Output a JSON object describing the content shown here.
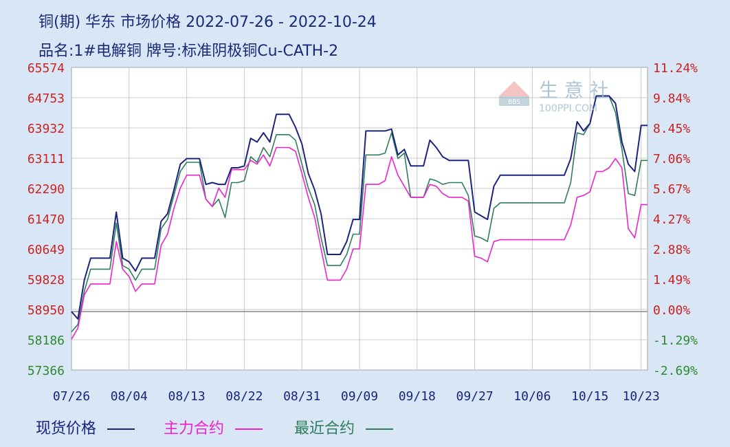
{
  "header": {
    "title": "铜(期) 华东 市场价格 2022-07-26 - 2022-10-24",
    "subtitle": "品名:1#电解铜 牌号:标准阴极铜Cu-CATH-2"
  },
  "watermark": {
    "name": "生 意 社",
    "site": "100PPI.COM"
  },
  "colors": {
    "spot": "#1a237e",
    "main": "#ee22cc",
    "recent": "#2e7d5a",
    "left_axis_upper": "#cc2222",
    "left_axis_lower": "#2e8b2e",
    "right_axis_upper": "#cc2222",
    "right_axis_lower": "#2e8b2e",
    "grid": "#c8c8c8",
    "baseline": "#888888"
  },
  "chart_data": {
    "type": "line",
    "x_ticks": [
      "07/26",
      "08/04",
      "08/13",
      "08/22",
      "08/31",
      "09/09",
      "09/18",
      "09/27",
      "10/06",
      "10/15",
      "10/23"
    ],
    "y_left_ticks": [
      "65574",
      "64753",
      "63932",
      "63111",
      "62290",
      "61470",
      "60649",
      "59828",
      "58950",
      "58186",
      "57366"
    ],
    "y_right_ticks": [
      "11.24%",
      "9.84%",
      "8.45%",
      "7.06%",
      "5.67%",
      "4.27%",
      "2.88%",
      "1.49%",
      "0.00%",
      "-1.29%",
      "-2.69%"
    ],
    "ylim": [
      57366,
      65574
    ],
    "baseline": 58950,
    "x_start": "07/26",
    "x_end": "10/24",
    "grid": true,
    "legend": [
      {
        "name": "现货价格",
        "key": "spot"
      },
      {
        "name": "主力合约",
        "key": "main"
      },
      {
        "name": "最近合约",
        "key": "recent"
      }
    ],
    "series": [
      {
        "name": "现货价格",
        "key": "spot",
        "points": [
          [
            "07/26",
            58950
          ],
          [
            "07/27",
            58750
          ],
          [
            "07/28",
            59800
          ],
          [
            "07/29",
            60400
          ],
          [
            "07/30",
            60400
          ],
          [
            "07/31",
            60400
          ],
          [
            "08/01",
            60400
          ],
          [
            "08/02",
            61650
          ],
          [
            "08/03",
            60400
          ],
          [
            "08/04",
            60300
          ],
          [
            "08/05",
            60050
          ],
          [
            "08/06",
            60400
          ],
          [
            "08/07",
            60400
          ],
          [
            "08/08",
            60400
          ],
          [
            "08/09",
            61400
          ],
          [
            "08/10",
            61600
          ],
          [
            "08/11",
            62250
          ],
          [
            "08/12",
            62950
          ],
          [
            "08/13",
            63100
          ],
          [
            "08/14",
            63100
          ],
          [
            "08/15",
            63100
          ],
          [
            "08/16",
            62400
          ],
          [
            "08/17",
            62450
          ],
          [
            "08/18",
            62400
          ],
          [
            "08/19",
            62400
          ],
          [
            "08/20",
            62850
          ],
          [
            "08/21",
            62850
          ],
          [
            "08/22",
            62900
          ],
          [
            "08/23",
            63650
          ],
          [
            "08/24",
            63550
          ],
          [
            "08/25",
            63800
          ],
          [
            "08/26",
            63550
          ],
          [
            "08/27",
            64300
          ],
          [
            "08/28",
            64300
          ],
          [
            "08/29",
            64300
          ],
          [
            "08/30",
            63950
          ],
          [
            "08/31",
            63500
          ],
          [
            "09/01",
            62700
          ],
          [
            "09/02",
            62250
          ],
          [
            "09/03",
            61600
          ],
          [
            "09/04",
            60500
          ],
          [
            "09/05",
            60500
          ],
          [
            "09/06",
            60500
          ],
          [
            "09/07",
            60850
          ],
          [
            "09/08",
            61450
          ],
          [
            "09/09",
            61450
          ],
          [
            "09/10",
            63850
          ],
          [
            "09/11",
            63850
          ],
          [
            "09/12",
            63850
          ],
          [
            "09/13",
            63850
          ],
          [
            "09/14",
            63900
          ],
          [
            "09/15",
            63200
          ],
          [
            "09/16",
            63350
          ],
          [
            "09/17",
            62900
          ],
          [
            "09/18",
            62900
          ],
          [
            "09/19",
            62900
          ],
          [
            "09/20",
            63600
          ],
          [
            "09/21",
            63400
          ],
          [
            "09/22",
            63150
          ],
          [
            "09/23",
            63050
          ],
          [
            "09/24",
            63050
          ],
          [
            "09/25",
            63050
          ],
          [
            "09/26",
            63050
          ],
          [
            "09/27",
            61650
          ],
          [
            "09/28",
            61550
          ],
          [
            "09/29",
            61450
          ],
          [
            "09/30",
            62350
          ],
          [
            "10/01",
            62650
          ],
          [
            "10/02",
            62650
          ],
          [
            "10/03",
            62650
          ],
          [
            "10/04",
            62650
          ],
          [
            "10/05",
            62650
          ],
          [
            "10/06",
            62650
          ],
          [
            "10/07",
            62650
          ],
          [
            "10/08",
            62650
          ],
          [
            "10/09",
            62650
          ],
          [
            "10/10",
            62650
          ],
          [
            "10/11",
            62650
          ],
          [
            "10/12",
            63100
          ],
          [
            "10/13",
            64100
          ],
          [
            "10/14",
            63850
          ],
          [
            "10/15",
            64050
          ],
          [
            "10/16",
            64800
          ],
          [
            "10/17",
            64800
          ],
          [
            "10/18",
            64800
          ],
          [
            "10/19",
            64600
          ],
          [
            "10/20",
            63550
          ],
          [
            "10/21",
            62950
          ],
          [
            "10/22",
            62750
          ],
          [
            "10/23",
            64000
          ],
          [
            "10/24",
            64000
          ]
        ]
      },
      {
        "name": "主力合约",
        "key": "main",
        "points": [
          [
            "07/26",
            58200
          ],
          [
            "07/27",
            58500
          ],
          [
            "07/28",
            59400
          ],
          [
            "07/29",
            59700
          ],
          [
            "07/30",
            59700
          ],
          [
            "07/31",
            59700
          ],
          [
            "08/01",
            59700
          ],
          [
            "08/02",
            60850
          ],
          [
            "08/03",
            60100
          ],
          [
            "08/04",
            59900
          ],
          [
            "08/05",
            59500
          ],
          [
            "08/06",
            59700
          ],
          [
            "08/07",
            59700
          ],
          [
            "08/08",
            59700
          ],
          [
            "08/09",
            60750
          ],
          [
            "08/10",
            61050
          ],
          [
            "08/11",
            61750
          ],
          [
            "08/12",
            62300
          ],
          [
            "08/13",
            62650
          ],
          [
            "08/14",
            62650
          ],
          [
            "08/15",
            62650
          ],
          [
            "08/16",
            62000
          ],
          [
            "08/17",
            61800
          ],
          [
            "08/18",
            62300
          ],
          [
            "08/19",
            62050
          ],
          [
            "08/20",
            62800
          ],
          [
            "08/21",
            62800
          ],
          [
            "08/22",
            62800
          ],
          [
            "08/23",
            63050
          ],
          [
            "08/24",
            62950
          ],
          [
            "08/25",
            63200
          ],
          [
            "08/26",
            62900
          ],
          [
            "08/27",
            63400
          ],
          [
            "08/28",
            63400
          ],
          [
            "08/29",
            63400
          ],
          [
            "08/30",
            63300
          ],
          [
            "08/31",
            62700
          ],
          [
            "09/01",
            62050
          ],
          [
            "09/02",
            61500
          ],
          [
            "09/03",
            60650
          ],
          [
            "09/04",
            59800
          ],
          [
            "09/05",
            59800
          ],
          [
            "09/06",
            59800
          ],
          [
            "09/07",
            60100
          ],
          [
            "09/08",
            60650
          ],
          [
            "09/09",
            60650
          ],
          [
            "09/10",
            62400
          ],
          [
            "09/11",
            62400
          ],
          [
            "09/12",
            62400
          ],
          [
            "09/13",
            62500
          ],
          [
            "09/14",
            63150
          ],
          [
            "09/15",
            62650
          ],
          [
            "09/16",
            62350
          ],
          [
            "09/17",
            62050
          ],
          [
            "09/18",
            62050
          ],
          [
            "09/19",
            62050
          ],
          [
            "09/20",
            62400
          ],
          [
            "09/21",
            62350
          ],
          [
            "09/22",
            62150
          ],
          [
            "09/23",
            62050
          ],
          [
            "09/24",
            62050
          ],
          [
            "09/25",
            62050
          ],
          [
            "09/26",
            61950
          ],
          [
            "09/27",
            60450
          ],
          [
            "09/28",
            60400
          ],
          [
            "09/29",
            60300
          ],
          [
            "09/30",
            60850
          ],
          [
            "10/01",
            60900
          ],
          [
            "10/02",
            60900
          ],
          [
            "10/03",
            60900
          ],
          [
            "10/04",
            60900
          ],
          [
            "10/05",
            60900
          ],
          [
            "10/06",
            60900
          ],
          [
            "10/07",
            60900
          ],
          [
            "10/08",
            60900
          ],
          [
            "10/09",
            60900
          ],
          [
            "10/10",
            60900
          ],
          [
            "10/11",
            60900
          ],
          [
            "10/12",
            61300
          ],
          [
            "10/13",
            62050
          ],
          [
            "10/14",
            62100
          ],
          [
            "10/15",
            62200
          ],
          [
            "10/16",
            62750
          ],
          [
            "10/17",
            62750
          ],
          [
            "10/18",
            62850
          ],
          [
            "10/19",
            63100
          ],
          [
            "10/20",
            62850
          ],
          [
            "10/21",
            61200
          ],
          [
            "10/22",
            60950
          ],
          [
            "10/23",
            61850
          ],
          [
            "10/24",
            61850
          ]
        ]
      },
      {
        "name": "最近合约",
        "key": "recent",
        "points": [
          [
            "07/26",
            58400
          ],
          [
            "07/27",
            58600
          ],
          [
            "07/28",
            59500
          ],
          [
            "07/29",
            60100
          ],
          [
            "07/30",
            60100
          ],
          [
            "07/31",
            60100
          ],
          [
            "08/01",
            60100
          ],
          [
            "08/02",
            61350
          ],
          [
            "08/03",
            60200
          ],
          [
            "08/04",
            60100
          ],
          [
            "08/05",
            59800
          ],
          [
            "08/06",
            60100
          ],
          [
            "08/07",
            60100
          ],
          [
            "08/08",
            60100
          ],
          [
            "08/09",
            61200
          ],
          [
            "08/10",
            61450
          ],
          [
            "08/11",
            62100
          ],
          [
            "08/12",
            62750
          ],
          [
            "08/13",
            63000
          ],
          [
            "08/14",
            63000
          ],
          [
            "08/15",
            63000
          ],
          [
            "08/16",
            62000
          ],
          [
            "08/17",
            61800
          ],
          [
            "08/18",
            62000
          ],
          [
            "08/19",
            61500
          ],
          [
            "08/20",
            62450
          ],
          [
            "08/21",
            62450
          ],
          [
            "08/22",
            62500
          ],
          [
            "08/23",
            63150
          ],
          [
            "08/24",
            63000
          ],
          [
            "08/25",
            63400
          ],
          [
            "08/26",
            63150
          ],
          [
            "08/27",
            63750
          ],
          [
            "08/28",
            63750
          ],
          [
            "08/29",
            63750
          ],
          [
            "08/30",
            63600
          ],
          [
            "08/31",
            62950
          ],
          [
            "09/01",
            62300
          ],
          [
            "09/02",
            61850
          ],
          [
            "09/03",
            60950
          ],
          [
            "09/04",
            60200
          ],
          [
            "09/05",
            60200
          ],
          [
            "09/06",
            60200
          ],
          [
            "09/07",
            60500
          ],
          [
            "09/08",
            61050
          ],
          [
            "09/09",
            61050
          ],
          [
            "09/10",
            63200
          ],
          [
            "09/11",
            63200
          ],
          [
            "09/12",
            63200
          ],
          [
            "09/13",
            63250
          ],
          [
            "09/14",
            63800
          ],
          [
            "09/15",
            63100
          ],
          [
            "09/16",
            63250
          ],
          [
            "09/17",
            62050
          ],
          [
            "09/18",
            62050
          ],
          [
            "09/19",
            62050
          ],
          [
            "09/20",
            62550
          ],
          [
            "09/21",
            62500
          ],
          [
            "09/22",
            62400
          ],
          [
            "09/23",
            62450
          ],
          [
            "09/24",
            62450
          ],
          [
            "09/25",
            62450
          ],
          [
            "09/26",
            62100
          ],
          [
            "09/27",
            61000
          ],
          [
            "09/28",
            60950
          ],
          [
            "09/29",
            60850
          ],
          [
            "09/30",
            61750
          ],
          [
            "10/01",
            61900
          ],
          [
            "10/02",
            61900
          ],
          [
            "10/03",
            61900
          ],
          [
            "10/04",
            61900
          ],
          [
            "10/05",
            61900
          ],
          [
            "10/06",
            61900
          ],
          [
            "10/07",
            61900
          ],
          [
            "10/08",
            61900
          ],
          [
            "10/09",
            61900
          ],
          [
            "10/10",
            61900
          ],
          [
            "10/11",
            61900
          ],
          [
            "10/12",
            62450
          ],
          [
            "10/13",
            63800
          ],
          [
            "10/14",
            63750
          ],
          [
            "10/15",
            64050
          ],
          [
            "10/16",
            64800
          ],
          [
            "10/17",
            64800
          ],
          [
            "10/18",
            64800
          ],
          [
            "10/19",
            64350
          ],
          [
            "10/20",
            63350
          ],
          [
            "10/21",
            62150
          ],
          [
            "10/22",
            62100
          ],
          [
            "10/23",
            63050
          ],
          [
            "10/24",
            63050
          ]
        ]
      }
    ]
  }
}
